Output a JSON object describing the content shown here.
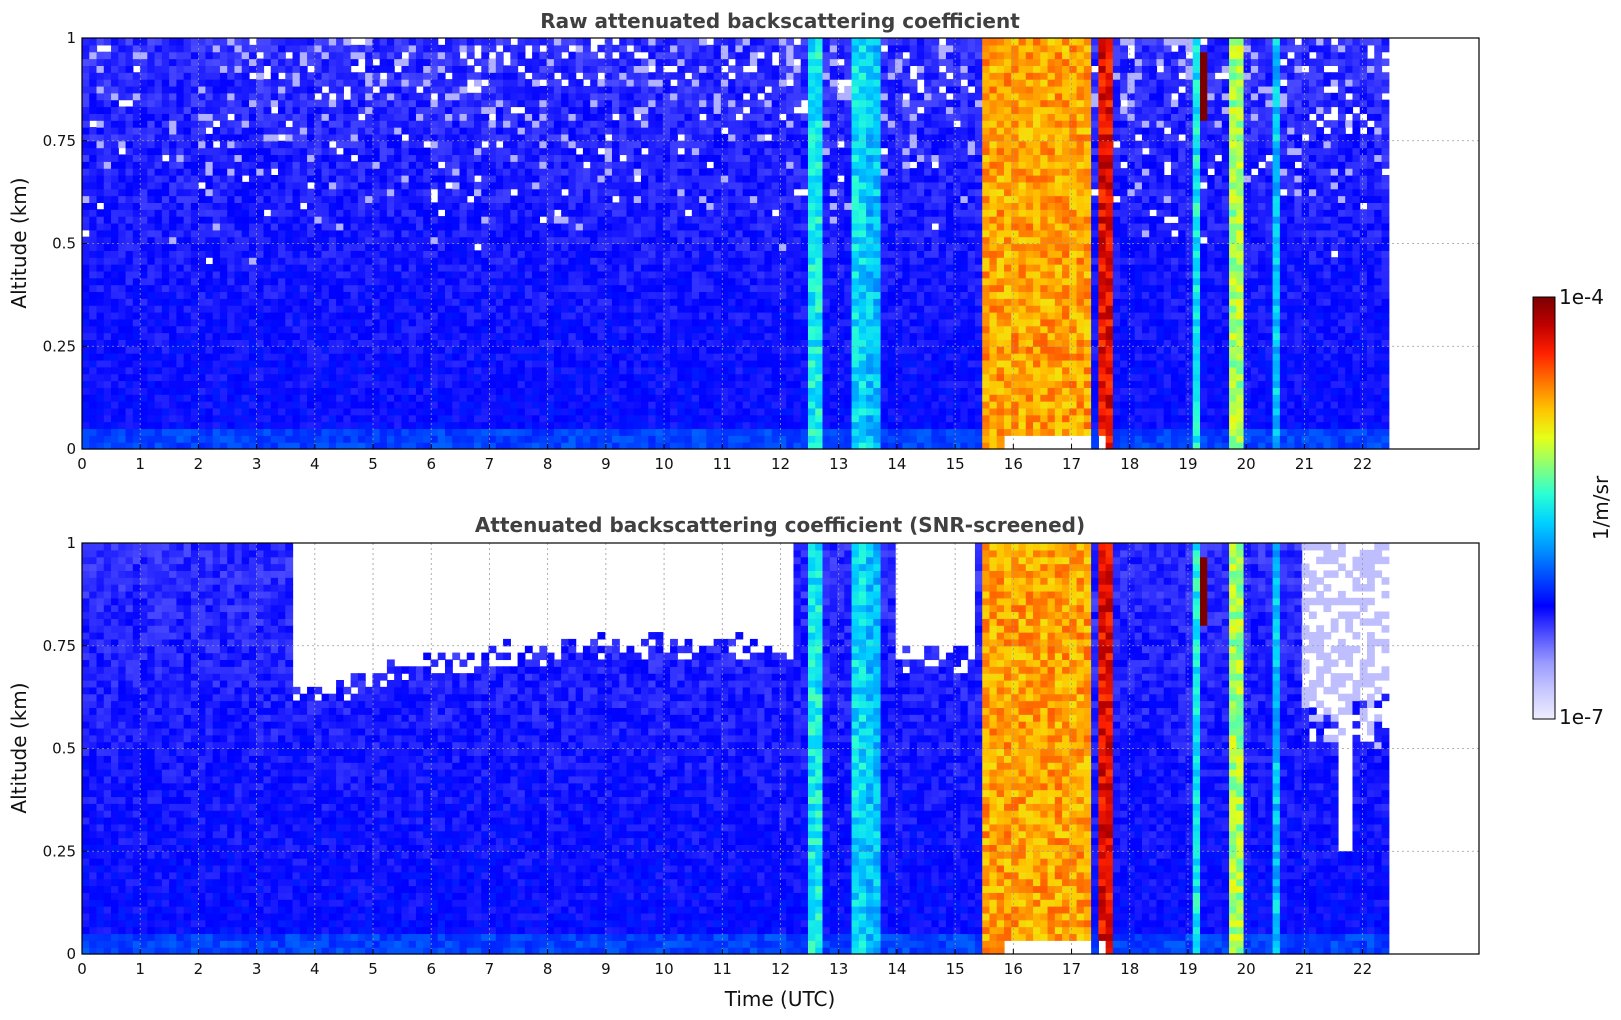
{
  "chart_data": [
    {
      "type": "heatmap",
      "title": "Raw attenuated backscattering coefficient",
      "xlabel": "",
      "ylabel": "Altitude (km)",
      "xlim": [
        0,
        24
      ],
      "ylim": [
        0,
        1
      ],
      "x_ticks": [
        "0",
        "1",
        "2",
        "3",
        "4",
        "5",
        "6",
        "7",
        "8",
        "9",
        "10",
        "11",
        "12",
        "13",
        "14",
        "15",
        "16",
        "17",
        "18",
        "19",
        "20",
        "21",
        "22"
      ],
      "y_ticks": [
        "0",
        "0.25",
        "0.5",
        "0.75",
        "1"
      ],
      "grid": true,
      "data_x_range": [
        0,
        22.45
      ],
      "color_scale": "log",
      "colormap": "jet"
    },
    {
      "type": "heatmap",
      "title": "Attenuated backscattering coefficient (SNR-screened)",
      "xlabel": "Time (UTC)",
      "ylabel": "Altitude (km)",
      "xlim": [
        0,
        24
      ],
      "ylim": [
        0,
        1
      ],
      "x_ticks": [
        "0",
        "1",
        "2",
        "3",
        "4",
        "5",
        "6",
        "7",
        "8",
        "9",
        "10",
        "11",
        "12",
        "13",
        "14",
        "15",
        "16",
        "17",
        "18",
        "19",
        "20",
        "21",
        "22"
      ],
      "y_ticks": [
        "0",
        "0.25",
        "0.5",
        "0.75",
        "1"
      ],
      "grid": true,
      "data_x_range": [
        0,
        22.45
      ],
      "color_scale": "log",
      "colormap": "jet"
    }
  ],
  "colorbar": {
    "label": "1/m/sr",
    "max_label": "1e-4",
    "min_label": "1e-7",
    "colors": [
      "#eeeeff",
      "#c8c8ff",
      "#9a9aff",
      "#5050ff",
      "#0000ff",
      "#0046ff",
      "#0090ff",
      "#00d2ff",
      "#2affd4",
      "#8aff76",
      "#e6ff18",
      "#ffc400",
      "#ff7400",
      "#ff2000",
      "#c00000",
      "#7a0000"
    ]
  },
  "features": {
    "cloud_bands": [
      {
        "x0": 12.45,
        "x1": 12.72,
        "level": 0.5
      },
      {
        "x0": 13.25,
        "x1": 13.45,
        "level": 0.48
      },
      {
        "x0": 13.5,
        "x1": 13.68,
        "level": 0.45
      },
      {
        "x0": 15.5,
        "x1": 17.3,
        "level": 0.76
      },
      {
        "x0": 17.52,
        "x1": 17.68,
        "level": 0.9
      },
      {
        "x0": 19.1,
        "x1": 19.2,
        "level": 0.5
      },
      {
        "x0": 19.72,
        "x1": 19.98,
        "level": 0.62
      },
      {
        "x0": 20.5,
        "x1": 20.62,
        "level": 0.45
      }
    ],
    "max_feature": {
      "t": 19.2,
      "alt": 0.88
    }
  }
}
